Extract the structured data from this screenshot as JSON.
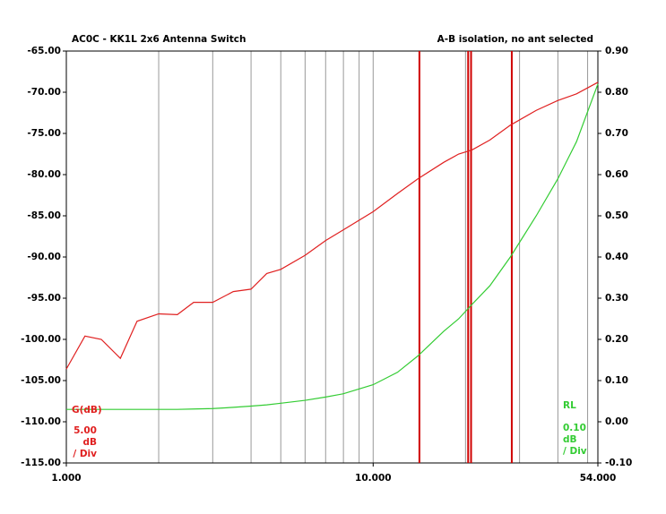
{
  "chart_data": {
    "type": "line",
    "title": "AC0C - KK1L 2x6 Antenna Switch",
    "subtitle": "A-B isolation, no ant selected",
    "x": [
      1,
      1.15,
      1.3,
      1.5,
      1.7,
      2,
      2.3,
      2.6,
      3,
      3.5,
      4,
      4.5,
      5,
      6,
      7,
      8,
      10,
      12,
      14,
      17,
      19,
      21,
      24,
      28,
      34,
      40,
      46,
      54
    ],
    "series": [
      {
        "name": "G(dB)",
        "color": "#e02020",
        "values": [
          -103.6,
          -99.6,
          -100.0,
          -102.3,
          -97.8,
          -96.9,
          -97.0,
          -95.5,
          -95.5,
          -94.2,
          -93.9,
          -92.0,
          -91.5,
          -89.8,
          -88.0,
          -86.7,
          -84.5,
          -82.3,
          -80.5,
          -78.5,
          -77.5,
          -77.0,
          -75.8,
          -74.0,
          -72.2,
          -71.0,
          -70.2,
          -68.8
        ]
      },
      {
        "name": "RL",
        "color": "#33cc33",
        "axis": "y2",
        "values": [
          0.03,
          0.03,
          0.03,
          0.03,
          0.03,
          0.03,
          0.03,
          0.031,
          0.032,
          0.035,
          0.038,
          0.041,
          0.045,
          0.052,
          0.06,
          0.068,
          0.09,
          0.12,
          0.16,
          0.22,
          0.25,
          0.285,
          0.33,
          0.4,
          0.5,
          0.59,
          0.68,
          0.82
        ]
      }
    ],
    "left_scale": [
      "5.00",
      "dB",
      "/ Div"
    ],
    "right_scale": [
      "0.10",
      "dB",
      "/ Div"
    ],
    "markers": {
      "color": "#d00000",
      "x": [
        14.15,
        20.4,
        20.85,
        28.3
      ]
    },
    "log_x": true,
    "xlim": [
      1,
      54
    ],
    "xticks": [
      {
        "value": 1,
        "label": "1.000"
      },
      {
        "value": 10,
        "label": "10.000"
      },
      {
        "value": 54,
        "label": "54.000"
      }
    ],
    "xgrid": [
      2,
      3,
      4,
      5,
      6,
      7,
      8,
      9,
      10,
      20,
      30,
      40,
      50
    ],
    "ylim": [
      -115,
      -65
    ],
    "yticks": [
      {
        "value": -115,
        "label": "-115.00"
      },
      {
        "value": -110,
        "label": "-110.00"
      },
      {
        "value": -105,
        "label": "-105.00"
      },
      {
        "value": -100,
        "label": "-100.00"
      },
      {
        "value": -95,
        "label": "-95.00"
      },
      {
        "value": -90,
        "label": "-90.00"
      },
      {
        "value": -85,
        "label": "-85.00"
      },
      {
        "value": -80,
        "label": "-80.00"
      },
      {
        "value": -75,
        "label": "-75.00"
      },
      {
        "value": -70,
        "label": "-70.00"
      },
      {
        "value": -65,
        "label": "-65.00"
      }
    ],
    "y2lim": [
      -0.1,
      0.9
    ],
    "y2ticks": [
      {
        "value": -0.1,
        "label": "-0.10"
      },
      {
        "value": 0,
        "label": "0.00"
      },
      {
        "value": 0.1,
        "label": "0.10"
      },
      {
        "value": 0.2,
        "label": "0.20"
      },
      {
        "value": 0.3,
        "label": "0.30"
      },
      {
        "value": 0.4,
        "label": "0.40"
      },
      {
        "value": 0.5,
        "label": "0.50"
      },
      {
        "value": 0.6,
        "label": "0.60"
      },
      {
        "value": 0.7,
        "label": "0.70"
      },
      {
        "value": 0.8,
        "label": "0.80"
      },
      {
        "value": 0.9,
        "label": "0.90"
      }
    ]
  }
}
